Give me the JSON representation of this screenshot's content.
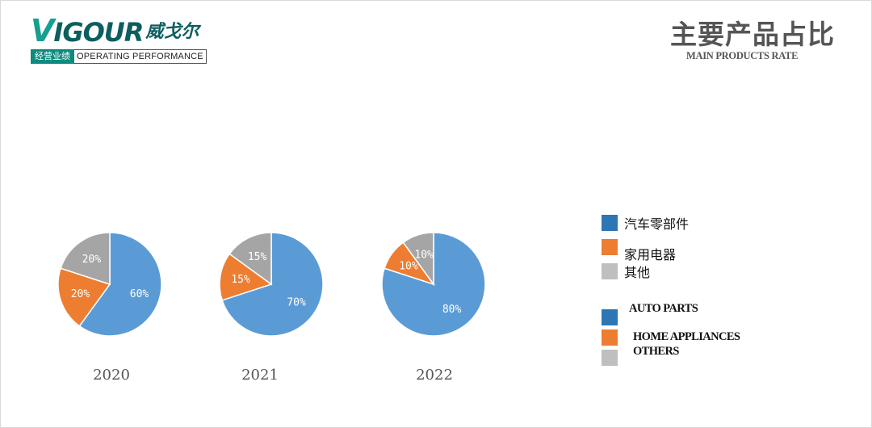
{
  "logo": {
    "wordmark_v": "V",
    "wordmark_rest": "IGOUR",
    "wordmark_cn": "威戈尔",
    "tag_cn": "经营业绩",
    "tag_en": "OPERATING PERFORMANCE",
    "colors": {
      "teal": "#0f8a7e",
      "dark_teal": "#0c5e5f"
    }
  },
  "page_title": {
    "cn": "主要产品占比",
    "en": "MAIN PRODUCTS RATE"
  },
  "chart_data": [
    {
      "type": "pie",
      "title": "2020",
      "categories": [
        "汽车零部件",
        "家用电器",
        "其他"
      ],
      "values": [
        60,
        20,
        20
      ],
      "labels": [
        "60%",
        "20%",
        "20%"
      ],
      "colors": [
        "#5b9bd5",
        "#ed7d31",
        "#a5a5a5"
      ]
    },
    {
      "type": "pie",
      "title": "2021",
      "categories": [
        "汽车零部件",
        "家用电器",
        "其他"
      ],
      "values": [
        70,
        15,
        15
      ],
      "labels": [
        "70%",
        "15%",
        "15%"
      ],
      "colors": [
        "#5b9bd5",
        "#ed7d31",
        "#a5a5a5"
      ]
    },
    {
      "type": "pie",
      "title": "2022",
      "categories": [
        "汽车零部件",
        "家用电器",
        "其他"
      ],
      "values": [
        80,
        10,
        10
      ],
      "labels": [
        "80%",
        "10%",
        "10%"
      ],
      "colors": [
        "#5b9bd5",
        "#ed7d31",
        "#a5a5a5"
      ]
    }
  ],
  "legend_cn": [
    {
      "label": "汽车零部件",
      "color": "#2e75b6"
    },
    {
      "label": "家用电器",
      "color": "#ed7d31"
    },
    {
      "label": "其他",
      "color": "#bfbfbf"
    }
  ],
  "legend_en": [
    {
      "label": "AUTO PARTS",
      "color": "#2e75b6"
    },
    {
      "label": "HOME APPLIANCES",
      "color": "#ed7d31"
    },
    {
      "label": "OTHERS",
      "color": "#bfbfbf"
    }
  ]
}
